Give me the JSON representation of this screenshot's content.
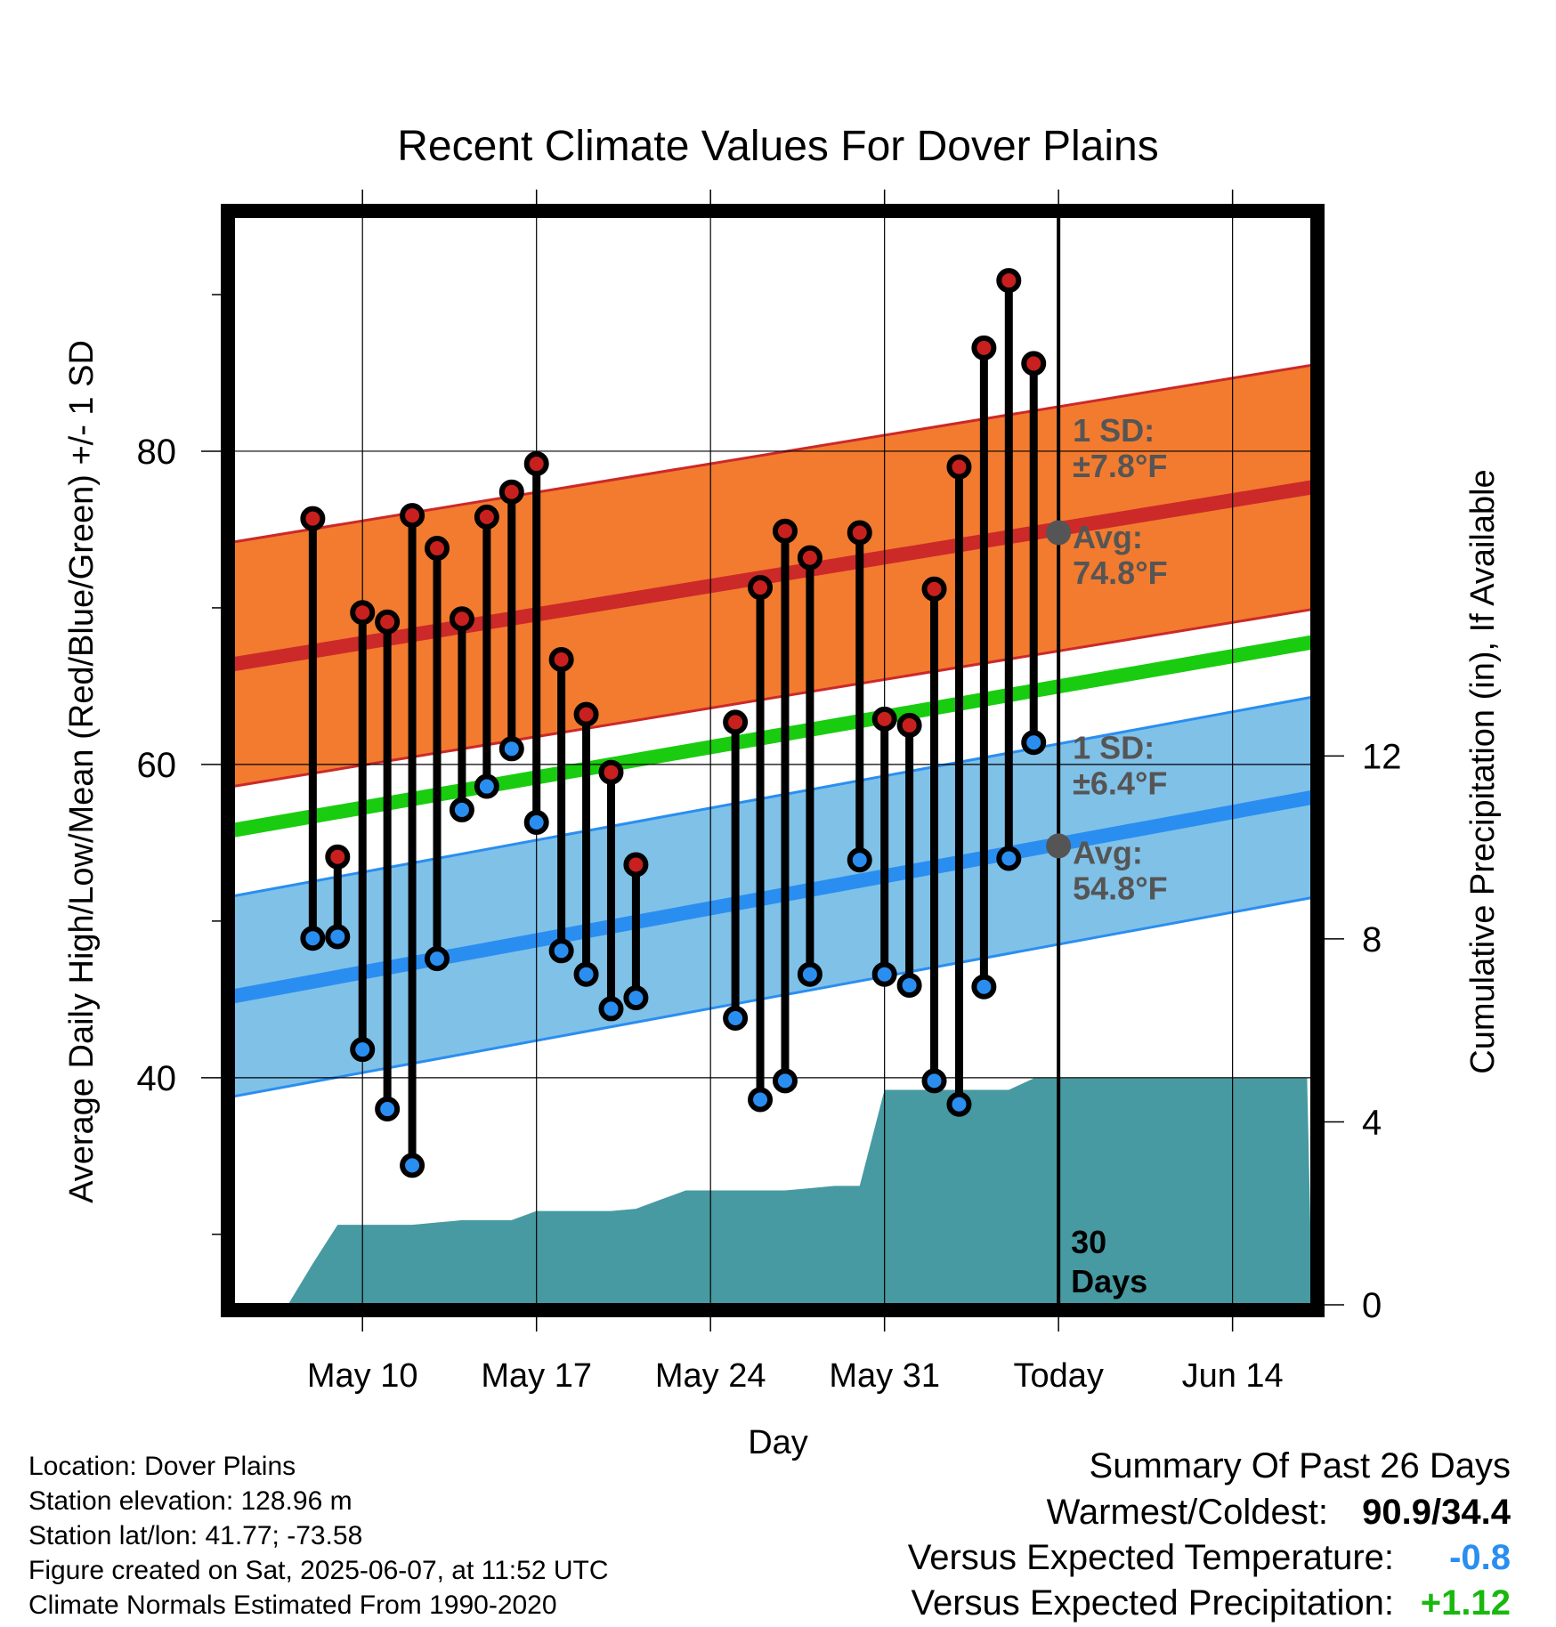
{
  "chart_data": {
    "type": "line",
    "title": "Recent Climate Values For Dover Plains",
    "xlabel": "Day",
    "ylabel": "Average Daily High/Low/Mean (Red/Blue/Green) +/- 1 SD",
    "y2label": "Cumulative Precipitation (in), If Available",
    "x_range_days": [
      -33.2,
      10.2
    ],
    "ylim": [
      25.5,
      95
    ],
    "y2lim": [
      0,
      23.8
    ],
    "x_ticks": [
      {
        "day": -28,
        "label": "May 10"
      },
      {
        "day": -21,
        "label": "May 17"
      },
      {
        "day": -14,
        "label": "May 24"
      },
      {
        "day": -7,
        "label": "May 31"
      },
      {
        "day": 0,
        "label": "Today"
      },
      {
        "day": 7,
        "label": "Jun 14"
      }
    ],
    "y_ticks": [
      40,
      60,
      80
    ],
    "y_minor_ticks": [
      30,
      50,
      70,
      90
    ],
    "y2_ticks": [
      0,
      4,
      8,
      12
    ],
    "normals": {
      "high_mean": {
        "start": 66.4,
        "end": 77.7
      },
      "high_sd": 7.8,
      "low_mean": {
        "start": 45.2,
        "end": 57.9
      },
      "low_sd": 6.4,
      "mean": {
        "start": 55.8,
        "end": 67.8
      }
    },
    "today_annotations": {
      "high_sd_label": "1 SD:",
      "high_sd_value": "±7.8°F",
      "high_avg_label": "Avg:",
      "high_avg_value": "74.8°F",
      "high_avg": 74.8,
      "low_sd_label": "1 SD:",
      "low_sd_value": "±6.4°F",
      "low_avg_label": "Avg:",
      "low_avg_value": "54.8°F",
      "low_avg": 54.8,
      "days_number": "30",
      "days_word": "Days"
    },
    "series": [
      {
        "name": "Daily High",
        "color": "#c8201e",
        "points": [
          {
            "day": -30,
            "value": 75.7
          },
          {
            "day": -29,
            "value": 54.1
          },
          {
            "day": -28,
            "value": 69.7
          },
          {
            "day": -27,
            "value": 69.1
          },
          {
            "day": -26,
            "value": 75.9
          },
          {
            "day": -25,
            "value": 73.8
          },
          {
            "day": -24,
            "value": 69.3
          },
          {
            "day": -23,
            "value": 75.8
          },
          {
            "day": -22,
            "value": 77.4
          },
          {
            "day": -21,
            "value": 79.2
          },
          {
            "day": -20,
            "value": 66.7
          },
          {
            "day": -19,
            "value": 63.2
          },
          {
            "day": -18,
            "value": 59.5
          },
          {
            "day": -17,
            "value": 53.6
          },
          {
            "day": -13,
            "value": 62.7
          },
          {
            "day": -12,
            "value": 71.3
          },
          {
            "day": -11,
            "value": 74.9
          },
          {
            "day": -10,
            "value": 73.2
          },
          {
            "day": -8,
            "value": 74.8
          },
          {
            "day": -7,
            "value": 62.9
          },
          {
            "day": -6,
            "value": 62.5
          },
          {
            "day": -5,
            "value": 71.2
          },
          {
            "day": -4,
            "value": 79.0
          },
          {
            "day": -3,
            "value": 86.6
          },
          {
            "day": -2,
            "value": 90.9
          },
          {
            "day": -1,
            "value": 85.6
          }
        ]
      },
      {
        "name": "Daily Low",
        "color": "#2a8ef0",
        "points": [
          {
            "day": -30,
            "value": 48.9
          },
          {
            "day": -29,
            "value": 49.0
          },
          {
            "day": -28,
            "value": 41.8
          },
          {
            "day": -27,
            "value": 38.0
          },
          {
            "day": -26,
            "value": 34.4
          },
          {
            "day": -25,
            "value": 47.6
          },
          {
            "day": -24,
            "value": 57.1
          },
          {
            "day": -23,
            "value": 58.6
          },
          {
            "day": -22,
            "value": 61.0
          },
          {
            "day": -21,
            "value": 56.3
          },
          {
            "day": -20,
            "value": 48.1
          },
          {
            "day": -19,
            "value": 46.6
          },
          {
            "day": -18,
            "value": 44.4
          },
          {
            "day": -17,
            "value": 45.1
          },
          {
            "day": -13,
            "value": 43.8
          },
          {
            "day": -12,
            "value": 38.6
          },
          {
            "day": -11,
            "value": 39.8
          },
          {
            "day": -10,
            "value": 46.6
          },
          {
            "day": -8,
            "value": 53.9
          },
          {
            "day": -7,
            "value": 46.6
          },
          {
            "day": -6,
            "value": 45.9
          },
          {
            "day": -5,
            "value": 39.8
          },
          {
            "day": -4,
            "value": 38.3
          },
          {
            "day": -3,
            "value": 45.8
          },
          {
            "day": -2,
            "value": 54.0
          },
          {
            "day": -1,
            "value": 61.4
          }
        ]
      },
      {
        "name": "Cumulative Precipitation (in)",
        "color": "#479aa2",
        "points": [
          {
            "day": -31,
            "value": 0
          },
          {
            "day": -30,
            "value": 0.9
          },
          {
            "day": -29,
            "value": 1.75
          },
          {
            "day": -28,
            "value": 1.75
          },
          {
            "day": -27,
            "value": 1.75
          },
          {
            "day": -26,
            "value": 1.75
          },
          {
            "day": -25,
            "value": 1.8
          },
          {
            "day": -24,
            "value": 1.85
          },
          {
            "day": -23,
            "value": 1.85
          },
          {
            "day": -22,
            "value": 1.85
          },
          {
            "day": -21,
            "value": 2.05
          },
          {
            "day": -20,
            "value": 2.05
          },
          {
            "day": -19,
            "value": 2.05
          },
          {
            "day": -18,
            "value": 2.05
          },
          {
            "day": -17,
            "value": 2.1
          },
          {
            "day": -16,
            "value": 2.3
          },
          {
            "day": -15,
            "value": 2.5
          },
          {
            "day": -14,
            "value": 2.5
          },
          {
            "day": -13,
            "value": 2.5
          },
          {
            "day": -12,
            "value": 2.5
          },
          {
            "day": -11,
            "value": 2.5
          },
          {
            "day": -10,
            "value": 2.55
          },
          {
            "day": -9,
            "value": 2.6
          },
          {
            "day": -8,
            "value": 2.6
          },
          {
            "day": -7,
            "value": 4.7
          },
          {
            "day": -6,
            "value": 4.7
          },
          {
            "day": -5,
            "value": 4.7
          },
          {
            "day": -4,
            "value": 4.7
          },
          {
            "day": -3,
            "value": 4.7
          },
          {
            "day": -2,
            "value": 4.7
          },
          {
            "day": -1,
            "value": 4.95
          },
          {
            "day": 0,
            "value": 4.95
          },
          {
            "day": 10,
            "value": 4.95
          }
        ]
      }
    ],
    "colors": {
      "high_band": "#f27b2f",
      "high_line": "#cc2929",
      "low_band": "#80c1e8",
      "low_line": "#2a8ef0",
      "mean_line": "#19cc0f",
      "precip": "#479aa2",
      "annotation": "#555555",
      "marker_high": "#c8201e",
      "marker_low": "#2a8ef0"
    }
  },
  "station_info": {
    "location": "Location: Dover Plains",
    "elevation": "Station elevation: 128.96 m",
    "latlon": "Station lat/lon: 41.77; -73.58",
    "created": "Figure created on Sat, 2025-06-07, at 11:52 UTC",
    "normals": "Climate Normals Estimated From 1990-2020"
  },
  "summary": {
    "title": "Summary Of Past 26 Days",
    "warm_cold_label": "Warmest/Coldest:",
    "warm_cold_value": "90.9/34.4",
    "temp_label": "Versus Expected Temperature:",
    "temp_value": "-0.8",
    "temp_color": "#2a8ef0",
    "precip_label": "Versus Expected Precipitation:",
    "precip_value": "+1.12",
    "precip_color": "#19b80f"
  }
}
